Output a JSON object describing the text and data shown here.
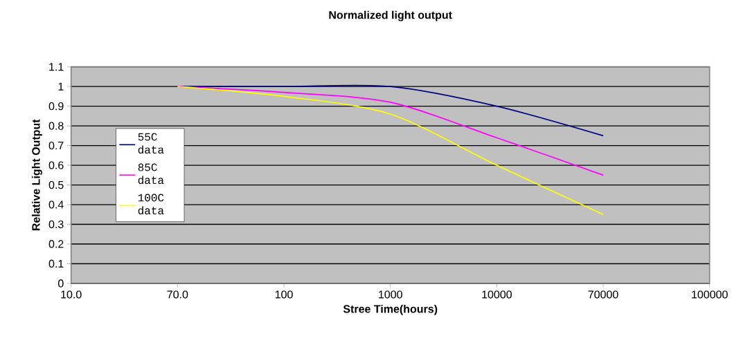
{
  "chart_data": {
    "type": "line",
    "title": "Normalized light output",
    "xlabel": "Stree Time(hours)",
    "ylabel": "Relative Light Output",
    "categories": [
      "10.0",
      "70.0",
      "100",
      "1000",
      "10000",
      "70000",
      "100000"
    ],
    "series": [
      {
        "name": "55C data",
        "color": "#000080",
        "values": [
          null,
          1.0,
          1.0,
          1.0,
          0.9,
          0.75,
          null
        ]
      },
      {
        "name": "85C data",
        "color": "#ff00ff",
        "values": [
          null,
          1.0,
          0.97,
          0.92,
          0.74,
          0.55,
          null
        ]
      },
      {
        "name": "100C data",
        "color": "#ffff00",
        "values": [
          null,
          1.0,
          0.95,
          0.86,
          0.6,
          0.35,
          null
        ]
      }
    ],
    "ylim": [
      0,
      1.1
    ],
    "yticks": [
      0,
      0.1,
      0.2,
      0.3,
      0.4,
      0.5,
      0.6,
      0.7,
      0.8,
      0.9,
      1,
      1.1
    ],
    "grid": "y",
    "legend": "left",
    "marker": "none",
    "line_style": "solid"
  }
}
